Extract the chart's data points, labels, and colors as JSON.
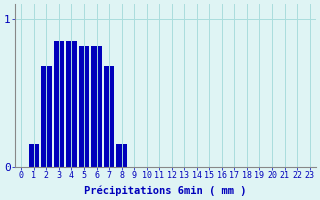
{
  "values": [
    0,
    0.15,
    0.68,
    0.85,
    0.85,
    0.82,
    0.82,
    0.68,
    0.15,
    0,
    0,
    0,
    0,
    0,
    0,
    0,
    0,
    0,
    0,
    0,
    0,
    0,
    0,
    0
  ],
  "xlabel": "Précipitations 6min ( mm )",
  "ylim": [
    0,
    1.1
  ],
  "yticks": [
    0,
    1
  ],
  "ytick_labels": [
    "0",
    "1"
  ],
  "bar_color": "#0000bb",
  "background_color": "#dff4f4",
  "grid_color": "#aadddd",
  "axis_color": "#888888",
  "text_color": "#0000bb",
  "xlabel_fontsize": 7.5,
  "tick_fontsize": 6,
  "ytick_fontsize": 8
}
